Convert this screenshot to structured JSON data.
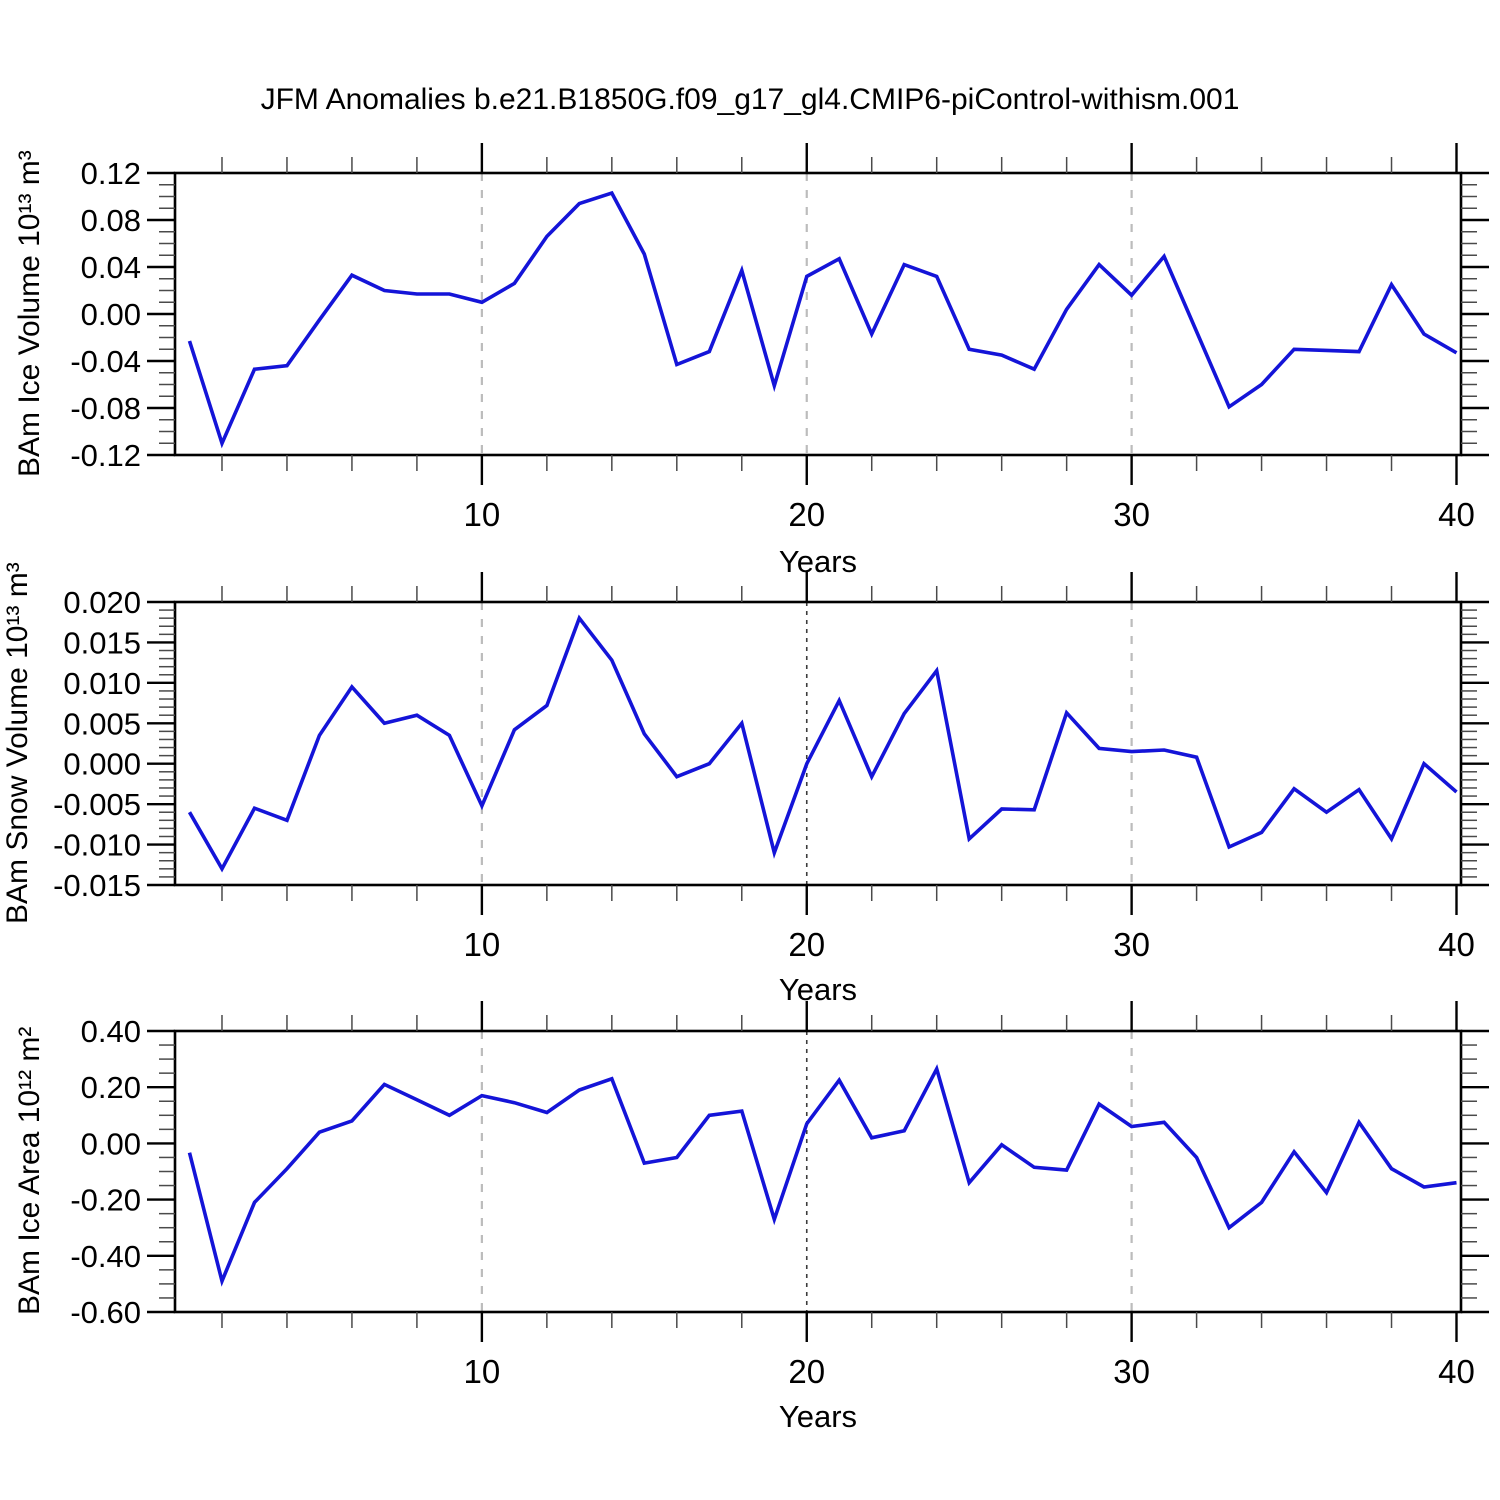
{
  "title": "JFM Anomalies b.e21.B1850G.f09_g17_gl4.CMIP6-piControl-withism.001",
  "figure": {
    "background": "#ffffff",
    "line_color": "#1414d8",
    "axis_color": "#000000",
    "minor_tick_color": "#4a4a4a",
    "grid_color": "#bcbcbc",
    "grid_dark_color": "#3c3c3c"
  },
  "x_axis": {
    "label": "Years",
    "range": [
      0.55,
      40.15
    ],
    "major_ticks": [
      10,
      20,
      30,
      40
    ],
    "major_tick_labels": [
      "10",
      "20",
      "30",
      "40"
    ],
    "minor_tick_step": 2,
    "grid_years": [
      10,
      20,
      30
    ]
  },
  "chart_data": [
    {
      "type": "line",
      "name": "ice-volume",
      "ylabel": "BAm Ice Volume 10¹³ m³",
      "xlabel": "Years",
      "ylim": [
        -0.12,
        0.12
      ],
      "ytick_values": [
        0.12,
        0.08,
        0.04,
        0.0,
        -0.04,
        -0.08,
        -0.12
      ],
      "ytick_labels": [
        "0.12",
        "0.08",
        "0.04",
        "0.00",
        "-0.04",
        "-0.08",
        "-0.12"
      ],
      "y_minor_step": 0.01,
      "grid_dark_years": [],
      "legend": "none",
      "grid": "vertical-dashed",
      "x": [
        1,
        2,
        3,
        4,
        5,
        6,
        7,
        8,
        9,
        10,
        11,
        12,
        13,
        14,
        15,
        16,
        17,
        18,
        19,
        20,
        21,
        22,
        23,
        24,
        25,
        26,
        27,
        28,
        29,
        30,
        31,
        32,
        33,
        34,
        35,
        36,
        37,
        38,
        39,
        40
      ],
      "values": [
        -0.023,
        -0.11,
        -0.047,
        -0.044,
        -0.005,
        0.033,
        0.02,
        0.017,
        0.017,
        0.01,
        0.026,
        0.066,
        0.094,
        0.103,
        0.051,
        -0.043,
        -0.032,
        0.037,
        -0.061,
        0.032,
        0.047,
        -0.017,
        0.042,
        0.032,
        -0.03,
        -0.035,
        -0.047,
        0.004,
        0.042,
        0.016,
        0.049,
        -0.015,
        -0.079,
        -0.06,
        -0.03,
        -0.031,
        -0.032,
        0.025,
        -0.017,
        -0.033
      ]
    },
    {
      "type": "line",
      "name": "snow-volume",
      "ylabel": "BAm Snow Volume 10¹³ m³",
      "xlabel": "Years",
      "ylim": [
        -0.015,
        0.02
      ],
      "ytick_values": [
        0.02,
        0.015,
        0.01,
        0.005,
        0.0,
        -0.005,
        -0.01,
        -0.015
      ],
      "ytick_labels": [
        "0.020",
        "0.015",
        "0.010",
        "0.005",
        "0.000",
        "-0.005",
        "-0.010",
        "-0.015"
      ],
      "y_minor_step": 0.001,
      "grid_dark_years": [
        20
      ],
      "legend": "none",
      "grid": "vertical-dashed",
      "x": [
        1,
        2,
        3,
        4,
        5,
        6,
        7,
        8,
        9,
        10,
        11,
        12,
        13,
        14,
        15,
        16,
        17,
        18,
        19,
        20,
        21,
        22,
        23,
        24,
        25,
        26,
        27,
        28,
        29,
        30,
        31,
        32,
        33,
        34,
        35,
        36,
        37,
        38,
        39,
        40
      ],
      "values": [
        -0.006,
        -0.013,
        -0.0055,
        -0.007,
        0.0035,
        0.0095,
        0.005,
        0.006,
        0.0035,
        -0.0052,
        0.0042,
        0.0072,
        0.018,
        0.0128,
        0.0037,
        -0.0016,
        0.0,
        0.005,
        -0.011,
        0.0,
        0.0078,
        -0.0016,
        0.0062,
        0.0115,
        -0.0093,
        -0.0056,
        -0.0057,
        0.0063,
        0.0019,
        0.0015,
        0.0017,
        0.0008,
        -0.0103,
        -0.0085,
        -0.0031,
        -0.006,
        -0.0032,
        -0.0093,
        0.0,
        -0.0035
      ]
    },
    {
      "type": "line",
      "name": "ice-area",
      "ylabel": "BAm Ice Area 10¹² m²",
      "xlabel": "Years",
      "ylim": [
        -0.6,
        0.4
      ],
      "ytick_values": [
        0.4,
        0.2,
        0.0,
        -0.2,
        -0.4,
        -0.6
      ],
      "ytick_labels": [
        "0.40",
        "0.20",
        "0.00",
        "-0.20",
        "-0.40",
        "-0.60"
      ],
      "y_minor_step": 0.05,
      "grid_dark_years": [
        20
      ],
      "legend": "none",
      "grid": "vertical-dashed",
      "x": [
        1,
        2,
        3,
        4,
        5,
        6,
        7,
        8,
        9,
        10,
        11,
        12,
        13,
        14,
        15,
        16,
        17,
        18,
        19,
        20,
        21,
        22,
        23,
        24,
        25,
        26,
        27,
        28,
        29,
        30,
        31,
        32,
        33,
        34,
        35,
        36,
        37,
        38,
        39,
        40
      ],
      "values": [
        -0.033,
        -0.49,
        -0.21,
        -0.09,
        0.04,
        0.08,
        0.21,
        0.155,
        0.1,
        0.17,
        0.145,
        0.11,
        0.19,
        0.23,
        -0.07,
        -0.05,
        0.1,
        0.115,
        -0.27,
        0.07,
        0.225,
        0.02,
        0.045,
        0.265,
        -0.14,
        -0.005,
        -0.085,
        -0.095,
        0.14,
        0.06,
        0.075,
        -0.05,
        -0.3,
        -0.21,
        -0.03,
        -0.175,
        0.075,
        -0.09,
        -0.155,
        -0.14
      ]
    }
  ]
}
